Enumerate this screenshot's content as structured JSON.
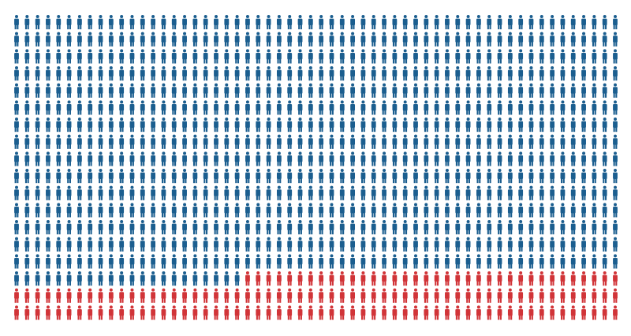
{
  "chart_data": {
    "type": "pictogram",
    "grid": {
      "rows": 18,
      "columns": 58
    },
    "icon": "person-icon",
    "series": [
      {
        "key": "blue",
        "count": 892,
        "color": "#1b5e8f"
      },
      {
        "key": "red",
        "count": 152,
        "color": "#d13438"
      }
    ],
    "fill_order": "row-major-from-top-left"
  }
}
